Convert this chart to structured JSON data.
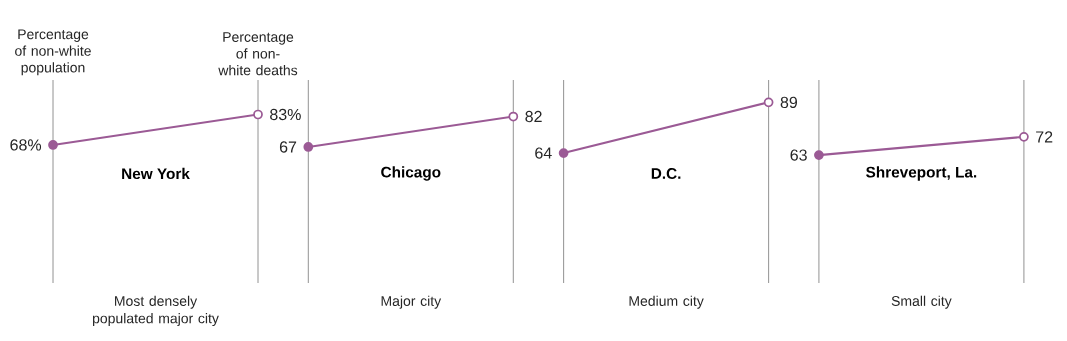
{
  "chart_data": [
    {
      "type": "line",
      "title": "New York",
      "xlabel": "Most densely populated major city",
      "categories": [
        "Percentage of non-white population",
        "Percentage of non-white deaths"
      ],
      "values": [
        68,
        83
      ],
      "value_labels": [
        "68%",
        "83%"
      ],
      "color": "#9b5a95",
      "marker": "circle",
      "grid": "x",
      "ylim": [
        0,
        100
      ]
    },
    {
      "type": "line",
      "title": "Chicago",
      "xlabel": "Major city",
      "categories": [
        null,
        null
      ],
      "values": [
        67,
        82
      ],
      "data_labels": true,
      "color": "#9b5a95",
      "marker": "circle",
      "grid": "x",
      "ylim": [
        0,
        100
      ]
    },
    {
      "type": "line",
      "title": "D.C.",
      "xlabel": "Medium city",
      "categories": [
        null,
        null
      ],
      "values": [
        64,
        89
      ],
      "data_labels": true,
      "color": "#9b5a95",
      "marker": "circle",
      "grid": "x",
      "ylim": [
        0,
        100
      ]
    },
    {
      "type": "line",
      "title": "Shreveport, La.",
      "xlabel": "Small city",
      "categories": [
        null,
        null
      ],
      "values": [
        63,
        72
      ],
      "data_labels": true,
      "color": "#9b5a95",
      "marker": "circle",
      "grid": "x",
      "ylim": [
        0,
        100
      ]
    }
  ]
}
